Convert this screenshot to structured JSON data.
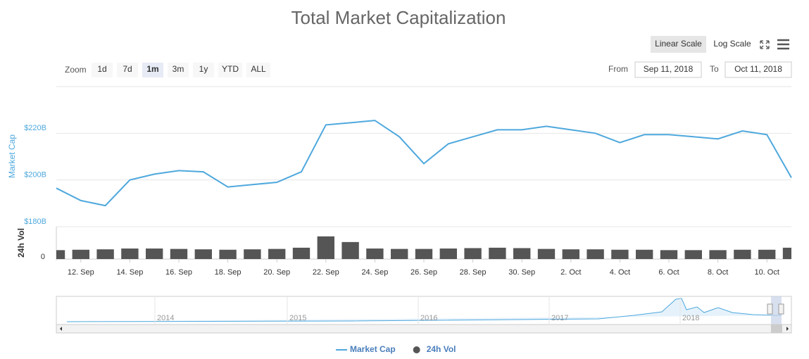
{
  "chart_data": {
    "type": "line",
    "title": "Total Market Capitalization",
    "x": [
      "2018-09-11",
      "2018-09-12",
      "2018-09-13",
      "2018-09-14",
      "2018-09-15",
      "2018-09-16",
      "2018-09-17",
      "2018-09-18",
      "2018-09-19",
      "2018-09-20",
      "2018-09-21",
      "2018-09-22",
      "2018-09-23",
      "2018-09-24",
      "2018-09-25",
      "2018-09-26",
      "2018-09-27",
      "2018-09-28",
      "2018-09-29",
      "2018-09-30",
      "2018-10-01",
      "2018-10-02",
      "2018-10-03",
      "2018-10-04",
      "2018-10-05",
      "2018-10-06",
      "2018-10-07",
      "2018-10-08",
      "2018-10-09",
      "2018-10-10",
      "2018-10-11"
    ],
    "xlim": [
      "2018-09-11",
      "2018-10-11"
    ],
    "xticks": [
      {
        "value": "2018-09-12",
        "label": "12. Sep"
      },
      {
        "value": "2018-09-14",
        "label": "14. Sep"
      },
      {
        "value": "2018-09-16",
        "label": "16. Sep"
      },
      {
        "value": "2018-09-18",
        "label": "18. Sep"
      },
      {
        "value": "2018-09-20",
        "label": "20. Sep"
      },
      {
        "value": "2018-09-22",
        "label": "22. Sep"
      },
      {
        "value": "2018-09-24",
        "label": "24. Sep"
      },
      {
        "value": "2018-09-26",
        "label": "26. Sep"
      },
      {
        "value": "2018-09-28",
        "label": "28. Sep"
      },
      {
        "value": "2018-09-30",
        "label": "30. Sep"
      },
      {
        "value": "2018-10-02",
        "label": "2. Oct"
      },
      {
        "value": "2018-10-04",
        "label": "4. Oct"
      },
      {
        "value": "2018-10-06",
        "label": "6. Oct"
      },
      {
        "value": "2018-10-08",
        "label": "8. Oct"
      },
      {
        "value": "2018-10-10",
        "label": "10. Oct"
      }
    ],
    "ylabel": "Market Cap",
    "ylim": [
      180,
      240
    ],
    "yticks": [
      {
        "value": 180,
        "label": "$180B"
      },
      {
        "value": 200,
        "label": "$200B"
      },
      {
        "value": 220,
        "label": "$220B"
      }
    ],
    "y2label": "24h Vol",
    "y2lim": [
      0,
      40
    ],
    "y2ticks": [
      0
    ],
    "grid": true,
    "series": [
      {
        "name": "Market Cap",
        "color": "#4ea8dd",
        "values": [
          196.5,
          191.2,
          189,
          200,
          202.5,
          204,
          203.5,
          197,
          198,
          199,
          203.5,
          223.6,
          224.5,
          225.5,
          218.5,
          207,
          215.5,
          218.5,
          221.5,
          221.5,
          223,
          221.5,
          220,
          216,
          219.4,
          219.4,
          218.5,
          217.6,
          221,
          219.4,
          201
        ]
      },
      {
        "name": "24h Vol",
        "color": "#555555",
        "type": "bar",
        "axis": "y2",
        "values": [
          11,
          11.5,
          12,
          13,
          13,
          12.5,
          12,
          11.5,
          12,
          12.5,
          14,
          28,
          21,
          13,
          12.5,
          12.5,
          13,
          13.5,
          14,
          13.5,
          12.5,
          12,
          12,
          11.5,
          11.5,
          11,
          11,
          11,
          11.5,
          11.5,
          14
        ]
      }
    ]
  },
  "ui": {
    "zoom_label": "Zoom",
    "zoom_buttons": [
      "1d",
      "7d",
      "1m",
      "3m",
      "1y",
      "YTD",
      "ALL"
    ],
    "zoom_selected": "1m",
    "scale_buttons": [
      "Linear Scale",
      "Log Scale"
    ],
    "scale_selected": "Linear Scale",
    "from_label": "From",
    "from_value": "Sep 11, 2018",
    "to_label": "To",
    "to_value": "Oct 11, 2018",
    "navigator_labels": [
      "2014",
      "2015",
      "2016",
      "2017",
      "2018"
    ]
  }
}
